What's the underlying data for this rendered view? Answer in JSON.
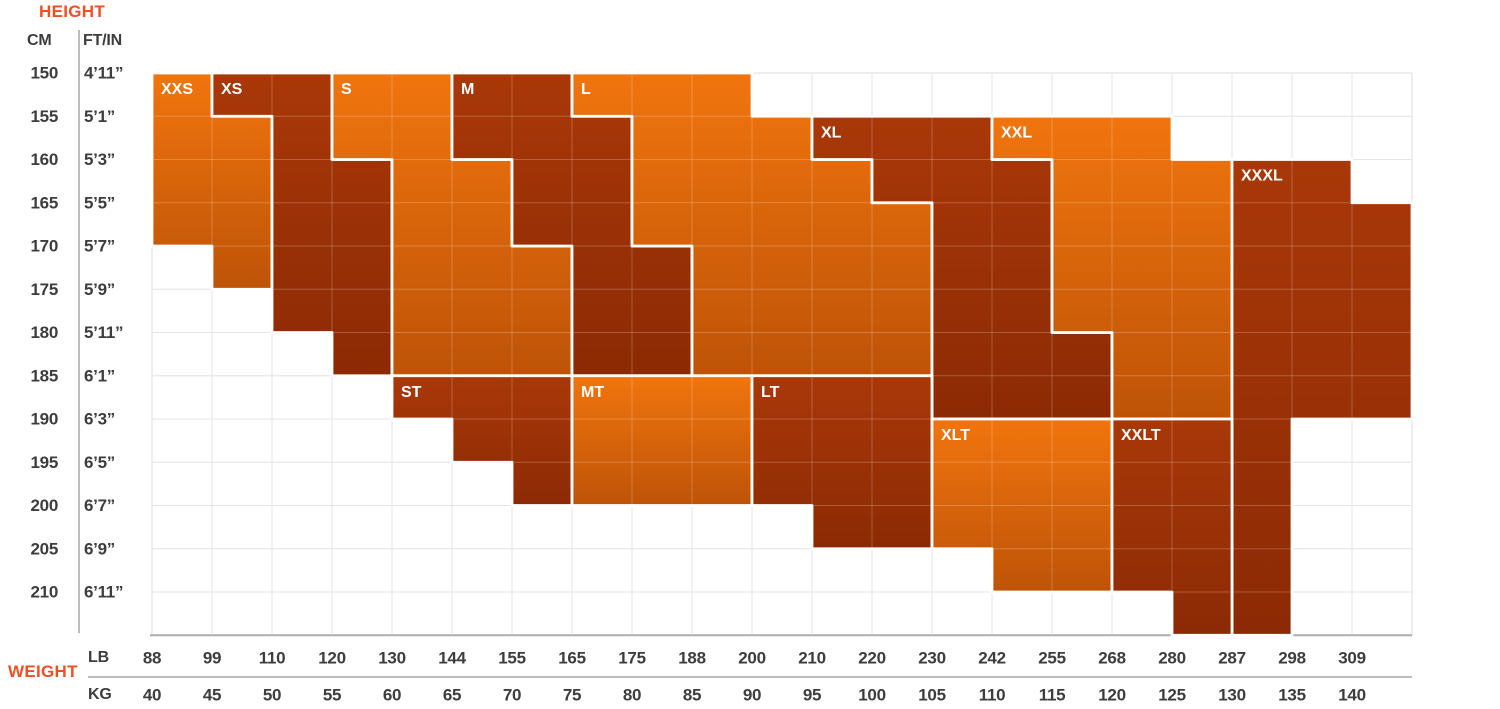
{
  "titles": {
    "height": "HEIGHT",
    "weight": "WEIGHT"
  },
  "axes": {
    "cm_label": "CM",
    "ftin_label": "FT/IN",
    "lb_label": "LB",
    "kg_label": "KG"
  },
  "colors": {
    "accent": "#F14E22",
    "axis_text": "#3D3D3D",
    "grid_line": "#DEDEDE",
    "axis_line": "#ADADAD",
    "divider": "#A5A5A5",
    "region_border": "#FFFFFF",
    "region_label_text": "#FFFFFF",
    "light_top": "#F1750E",
    "light_bottom": "#BE5307",
    "dark_top": "#A93808",
    "dark_bottom": "#8C2A05",
    "inner_grid_overlay": "#FFFFFF"
  },
  "chart_data": {
    "type": "heatmap",
    "title": "Size chart: height vs weight with size regions",
    "y_axis": {
      "label": "HEIGHT",
      "units": [
        "CM",
        "FT/IN"
      ],
      "ticks_cm": [
        "150",
        "155",
        "160",
        "165",
        "170",
        "175",
        "180",
        "185",
        "190",
        "195",
        "200",
        "205",
        "210"
      ],
      "ticks_ftin": [
        "4’11”",
        "5’1”",
        "5’3”",
        "5’5”",
        "5’7”",
        "5’9”",
        "5’11”",
        "6’1”",
        "6’3”",
        "6’5”",
        "6’7”",
        "6’9”",
        "6’11”"
      ]
    },
    "x_axis": {
      "label": "WEIGHT",
      "units": [
        "LB",
        "KG"
      ],
      "ticks_lb": [
        "88",
        "99",
        "110",
        "120",
        "130",
        "144",
        "155",
        "165",
        "175",
        "188",
        "200",
        "210",
        "220",
        "230",
        "242",
        "255",
        "268",
        "280",
        "287",
        "298",
        "309"
      ],
      "ticks_kg": [
        "40",
        "45",
        "50",
        "55",
        "60",
        "65",
        "70",
        "75",
        "80",
        "85",
        "90",
        "95",
        "100",
        "105",
        "110",
        "115",
        "120",
        "125",
        "130",
        "135",
        "140"
      ]
    },
    "grid": {
      "columns": 21,
      "rows": 13,
      "note": "cells[i] = [rowIndex, firstColumn, lastColumn]; row/column indices map to tick boundaries above"
    },
    "regions": [
      {
        "label": "XXS",
        "shade": "light",
        "label_cell": {
          "row": 0,
          "col": 0
        },
        "cells": [
          [
            0,
            0,
            0
          ],
          [
            1,
            0,
            1
          ],
          [
            2,
            0,
            1
          ],
          [
            3,
            0,
            1
          ],
          [
            4,
            1,
            1
          ]
        ]
      },
      {
        "label": "XS",
        "shade": "dark",
        "label_cell": {
          "row": 0,
          "col": 1
        },
        "cells": [
          [
            0,
            1,
            2
          ],
          [
            1,
            2,
            2
          ],
          [
            2,
            2,
            3
          ],
          [
            3,
            2,
            3
          ],
          [
            4,
            2,
            3
          ],
          [
            5,
            2,
            3
          ],
          [
            6,
            3,
            3
          ]
        ]
      },
      {
        "label": "S",
        "shade": "light",
        "label_cell": {
          "row": 0,
          "col": 3
        },
        "cells": [
          [
            0,
            3,
            4
          ],
          [
            1,
            3,
            4
          ],
          [
            2,
            4,
            5
          ],
          [
            3,
            4,
            5
          ],
          [
            4,
            4,
            6
          ],
          [
            5,
            4,
            6
          ],
          [
            6,
            4,
            6
          ]
        ]
      },
      {
        "label": "M",
        "shade": "dark",
        "label_cell": {
          "row": 0,
          "col": 5
        },
        "cells": [
          [
            0,
            5,
            6
          ],
          [
            1,
            5,
            7
          ],
          [
            2,
            6,
            7
          ],
          [
            3,
            6,
            7
          ],
          [
            4,
            7,
            8
          ],
          [
            5,
            7,
            8
          ],
          [
            6,
            7,
            8
          ]
        ]
      },
      {
        "label": "L",
        "shade": "light",
        "label_cell": {
          "row": 0,
          "col": 7
        },
        "cells": [
          [
            0,
            7,
            9
          ],
          [
            1,
            8,
            10
          ],
          [
            2,
            8,
            11
          ],
          [
            3,
            8,
            12
          ],
          [
            4,
            9,
            12
          ],
          [
            5,
            9,
            12
          ],
          [
            6,
            9,
            12
          ]
        ]
      },
      {
        "label": "XL",
        "shade": "dark",
        "label_cell": {
          "row": 1,
          "col": 11
        },
        "cells": [
          [
            1,
            11,
            13
          ],
          [
            2,
            12,
            14
          ],
          [
            3,
            13,
            14
          ],
          [
            4,
            13,
            14
          ],
          [
            5,
            13,
            14
          ],
          [
            6,
            13,
            15
          ],
          [
            7,
            13,
            15
          ]
        ]
      },
      {
        "label": "XXL",
        "shade": "light",
        "label_cell": {
          "row": 1,
          "col": 14
        },
        "cells": [
          [
            1,
            14,
            16
          ],
          [
            2,
            15,
            17
          ],
          [
            3,
            15,
            17
          ],
          [
            4,
            15,
            17
          ],
          [
            5,
            15,
            17
          ],
          [
            6,
            16,
            17
          ],
          [
            7,
            16,
            17
          ]
        ]
      },
      {
        "label": "XXXL",
        "shade": "dark",
        "label_cell": {
          "row": 2,
          "col": 18
        },
        "cells": [
          [
            2,
            18,
            19
          ],
          [
            3,
            18,
            20
          ],
          [
            4,
            18,
            20
          ],
          [
            5,
            18,
            20
          ],
          [
            6,
            18,
            20
          ],
          [
            7,
            18,
            20
          ],
          [
            8,
            18,
            18
          ],
          [
            9,
            18,
            18
          ],
          [
            10,
            18,
            18
          ],
          [
            11,
            18,
            18
          ],
          [
            12,
            18,
            18
          ]
        ]
      },
      {
        "label": "ST",
        "shade": "dark",
        "label_cell": {
          "row": 7,
          "col": 4
        },
        "cells": [
          [
            7,
            4,
            6
          ],
          [
            8,
            5,
            6
          ],
          [
            9,
            6,
            6
          ]
        ]
      },
      {
        "label": "MT",
        "shade": "light",
        "label_cell": {
          "row": 7,
          "col": 7
        },
        "cells": [
          [
            7,
            7,
            9
          ],
          [
            8,
            7,
            9
          ],
          [
            9,
            7,
            9
          ]
        ]
      },
      {
        "label": "LT",
        "shade": "dark",
        "label_cell": {
          "row": 7,
          "col": 10
        },
        "cells": [
          [
            7,
            10,
            12
          ],
          [
            8,
            10,
            12
          ],
          [
            9,
            10,
            12
          ],
          [
            10,
            11,
            12
          ]
        ]
      },
      {
        "label": "XLT",
        "shade": "light",
        "label_cell": {
          "row": 8,
          "col": 13
        },
        "cells": [
          [
            8,
            13,
            15
          ],
          [
            9,
            13,
            15
          ],
          [
            10,
            13,
            15
          ],
          [
            11,
            14,
            15
          ]
        ]
      },
      {
        "label": "XXLT",
        "shade": "dark",
        "label_cell": {
          "row": 8,
          "col": 16
        },
        "cells": [
          [
            8,
            16,
            17
          ],
          [
            9,
            16,
            17
          ],
          [
            10,
            16,
            17
          ],
          [
            11,
            16,
            17
          ],
          [
            12,
            17,
            17
          ]
        ]
      }
    ],
    "legend_position": "none",
    "grid_on": true
  }
}
